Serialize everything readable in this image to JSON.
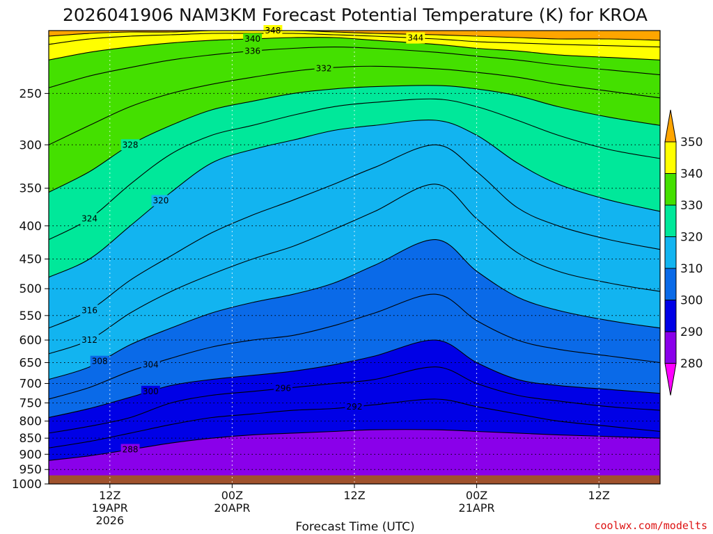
{
  "chart_data": {
    "type": "heatmap",
    "title": "2026041906 NAM3KM Forecast Potential Temperature (K) for KROA",
    "xlabel": "Forecast Time (UTC)",
    "ylabel": "",
    "credit": "coolwx.com/modelts",
    "y_axis": {
      "scale": "log-pressure",
      "unit": "hPa",
      "ylim": [
        1000,
        200
      ],
      "ticks": [
        250,
        300,
        350,
        400,
        450,
        500,
        550,
        600,
        650,
        700,
        750,
        800,
        850,
        900,
        950,
        1000
      ]
    },
    "x_axis": {
      "start": "2026-04-19T06Z",
      "end": "2026-04-21T18Z",
      "xlim_hours": [
        0,
        60
      ],
      "ticks": [
        {
          "hour": 6,
          "label_lines": [
            "12Z",
            "19APR",
            "2026"
          ]
        },
        {
          "hour": 18,
          "label_lines": [
            "00Z",
            "20APR"
          ]
        },
        {
          "hour": 30,
          "label_lines": [
            "12Z"
          ]
        },
        {
          "hour": 42,
          "label_lines": [
            "00Z",
            "21APR"
          ]
        },
        {
          "hour": 54,
          "label_lines": [
            "12Z"
          ]
        }
      ]
    },
    "colorbar": {
      "levels": [
        280,
        290,
        300,
        310,
        320,
        330,
        340,
        350
      ],
      "colors": [
        "#ff00ff",
        "#8a00ea",
        "#0000e6",
        "#0a6ae8",
        "#12b4f0",
        "#00e89a",
        "#44e000",
        "#ffff00",
        "#ffa500"
      ]
    },
    "contour_interval": 4,
    "ground": {
      "pressure_min": 970,
      "color": "#a0522d"
    },
    "isentropes": [
      {
        "theta": 288,
        "p": [
          920,
          905,
          885,
          865,
          850,
          840,
          835,
          830,
          825,
          825,
          830,
          835,
          840,
          845,
          850
        ],
        "label_hour": 8
      },
      {
        "theta": 292,
        "p": [
          880,
          860,
          835,
          810,
          790,
          780,
          770,
          765,
          755,
          740,
          760,
          780,
          800,
          815,
          830
        ],
        "label_hour": 30
      },
      {
        "theta": 296,
        "p": [
          835,
          815,
          790,
          750,
          730,
          720,
          710,
          700,
          690,
          660,
          700,
          730,
          745,
          760,
          770
        ],
        "label_hour": 23
      },
      {
        "theta": 300,
        "p": [
          790,
          765,
          735,
          705,
          690,
          680,
          670,
          655,
          635,
          600,
          650,
          690,
          705,
          715,
          725
        ],
        "label_hour": 10
      },
      {
        "theta": 304,
        "p": [
          740,
          710,
          670,
          640,
          615,
          600,
          590,
          570,
          545,
          510,
          560,
          600,
          620,
          635,
          650
        ],
        "label_hour": 10
      },
      {
        "theta": 308,
        "p": [
          690,
          660,
          610,
          575,
          545,
          525,
          510,
          490,
          460,
          420,
          470,
          515,
          540,
          560,
          575
        ],
        "label_hour": 5
      },
      {
        "theta": 312,
        "p": [
          630,
          600,
          545,
          505,
          475,
          450,
          430,
          405,
          380,
          345,
          390,
          440,
          470,
          490,
          505
        ],
        "label_hour": 4
      },
      {
        "theta": 316,
        "p": [
          575,
          540,
          485,
          445,
          410,
          385,
          365,
          345,
          325,
          300,
          330,
          375,
          400,
          420,
          435
        ],
        "label_hour": 4
      },
      {
        "theta": 320,
        "p": [
          480,
          450,
          400,
          355,
          320,
          305,
          295,
          285,
          280,
          275,
          290,
          320,
          345,
          365,
          380
        ],
        "label_hour": 11
      },
      {
        "theta": 324,
        "p": [
          420,
          390,
          345,
          310,
          290,
          280,
          270,
          262,
          258,
          255,
          262,
          275,
          290,
          305,
          315
        ],
        "label_hour": 4
      },
      {
        "theta": 328,
        "p": [
          355,
          330,
          300,
          280,
          265,
          257,
          250,
          246,
          244,
          243,
          246,
          252,
          262,
          272,
          280
        ],
        "label_hour": 8
      },
      {
        "theta": 332,
        "p": [
          300,
          280,
          262,
          250,
          242,
          236,
          231,
          228,
          227,
          229,
          232,
          236,
          242,
          248,
          254
        ],
        "label_hour": 27
      },
      {
        "theta": 336,
        "p": [
          245,
          235,
          228,
          222,
          218,
          215,
          213,
          212,
          213,
          216,
          219,
          222,
          226,
          230,
          234
        ],
        "label_hour": 20
      },
      {
        "theta": 340,
        "p": [
          222,
          216,
          212,
          209,
          207,
          206,
          205,
          205,
          207,
          210,
          213,
          215,
          218,
          220,
          222
        ],
        "label_hour": 20
      },
      {
        "theta": 344,
        "p": [
          210,
          206,
          204,
          203,
          202,
          202,
          202,
          203,
          204,
          206,
          208,
          209,
          210,
          211,
          212
        ],
        "label_hour": 36
      },
      {
        "theta": 348,
        "p": [
          204,
          202,
          201,
          201,
          200,
          200,
          200,
          201,
          202,
          203,
          204,
          205,
          206,
          206,
          207
        ],
        "label_hour": 22
      }
    ],
    "isentrope_hours": [
      0,
      4,
      8,
      12,
      16,
      20,
      24,
      28,
      32,
      38,
      42,
      46,
      50,
      55,
      60
    ]
  }
}
